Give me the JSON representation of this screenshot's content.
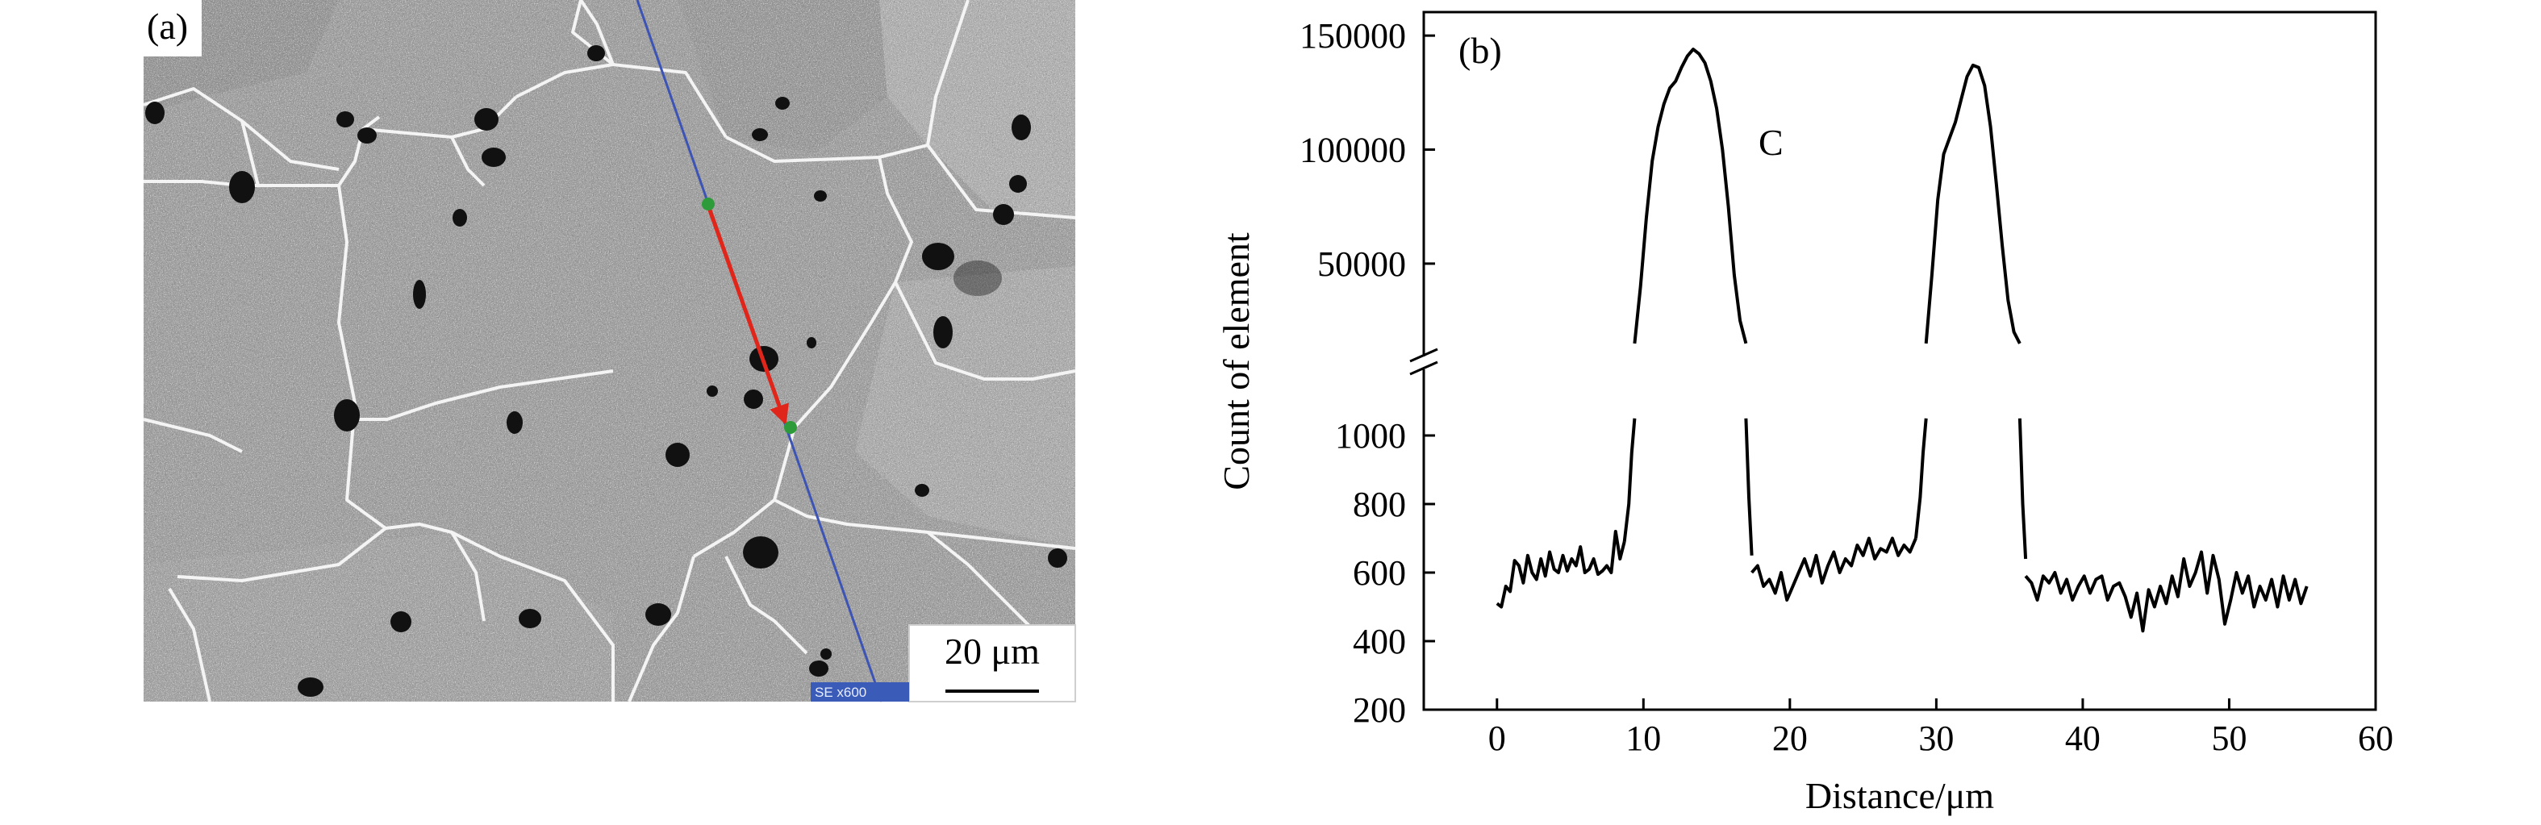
{
  "panel_a": {
    "label": "(a)",
    "scale_bar_label": "20 μm",
    "sem_footer": "SE  x600"
  },
  "chart_data": {
    "type": "line",
    "panel_label": "(b)",
    "xlabel": "Distance/μm",
    "ylabel": "Count of element",
    "series_annotation": "C",
    "xlim": [
      -5,
      60
    ],
    "x_ticks": [
      0,
      10,
      20,
      30,
      40,
      50,
      60
    ],
    "y_axis_broken": true,
    "y_ticks_lower": [
      200,
      400,
      600,
      800,
      1000
    ],
    "y_ticks_upper": [
      50000,
      100000,
      150000
    ],
    "ylim_lower": [
      200,
      1200
    ],
    "ylim_upper": [
      10000,
      155000
    ],
    "grid": false,
    "series": [
      {
        "x": [
          0.0,
          0.3,
          0.6,
          0.9,
          1.2,
          1.5,
          1.8,
          2.1,
          2.4,
          2.7,
          3.0,
          3.3,
          3.6,
          3.9,
          4.2,
          4.5,
          4.8,
          5.1,
          5.4,
          5.7,
          6.0,
          6.3,
          6.6,
          6.9,
          7.2,
          7.5,
          7.8,
          8.1,
          8.4,
          8.7
        ],
        "y": [
          510,
          500,
          560,
          545,
          635,
          620,
          570,
          650,
          600,
          580,
          640,
          590,
          660,
          610,
          600,
          650,
          605,
          640,
          620,
          675,
          600,
          610,
          640,
          595,
          605,
          620,
          600,
          720,
          640,
          690
        ]
      },
      {
        "x": [
          8.7,
          9.0,
          9.2,
          9.4
        ],
        "y": [
          690,
          800,
          950,
          1050
        ]
      },
      {
        "x": [
          9.4,
          9.8,
          10.2,
          10.6,
          11.0,
          11.4,
          11.8,
          12.2,
          12.6,
          13.0,
          13.4,
          13.8,
          14.2,
          14.6,
          15.0,
          15.4,
          15.8,
          16.2,
          16.6,
          17.0
        ],
        "y": [
          15000,
          40000,
          70000,
          95000,
          110000,
          120000,
          127000,
          130000,
          136000,
          141000,
          144000,
          142000,
          138000,
          130000,
          118000,
          100000,
          75000,
          45000,
          25000,
          15000
        ]
      },
      {
        "x": [
          17.0,
          17.2,
          17.4
        ],
        "y": [
          1050,
          820,
          650
        ]
      },
      {
        "x": [
          17.4,
          17.8,
          18.2,
          18.6,
          19.0,
          19.4,
          19.8,
          20.2,
          20.6,
          21.0,
          21.4,
          21.8,
          22.2,
          22.6,
          23.0,
          23.4,
          23.8,
          24.2,
          24.6,
          25.0,
          25.4,
          25.8,
          26.2,
          26.6,
          27.0,
          27.4,
          27.8,
          28.2,
          28.6
        ],
        "y": [
          600,
          620,
          560,
          580,
          540,
          600,
          520,
          560,
          600,
          640,
          590,
          650,
          570,
          620,
          660,
          600,
          640,
          620,
          680,
          650,
          700,
          640,
          670,
          660,
          700,
          650,
          680,
          660,
          700
        ]
      },
      {
        "x": [
          28.6,
          28.9,
          29.1,
          29.3
        ],
        "y": [
          700,
          820,
          950,
          1050
        ]
      },
      {
        "x": [
          29.3,
          29.7,
          30.1,
          30.5,
          30.9,
          31.3,
          31.7,
          32.1,
          32.5,
          32.9,
          33.3,
          33.7,
          34.1,
          34.5,
          34.9,
          35.3,
          35.7
        ],
        "y": [
          15000,
          45000,
          78000,
          98000,
          105000,
          112000,
          122000,
          132000,
          137000,
          136000,
          128000,
          110000,
          85000,
          58000,
          34000,
          20000,
          15000
        ]
      },
      {
        "x": [
          35.7,
          35.9,
          36.1
        ],
        "y": [
          1050,
          800,
          640
        ]
      },
      {
        "x": [
          36.1,
          36.5,
          36.9,
          37.3,
          37.7,
          38.1,
          38.5,
          38.9,
          39.3,
          39.7,
          40.1,
          40.5,
          40.9,
          41.3,
          41.7,
          42.1,
          42.5,
          42.9,
          43.3,
          43.7,
          44.1,
          44.5,
          44.9,
          45.3,
          45.7,
          46.1,
          46.5,
          46.9,
          47.3,
          47.7,
          48.1,
          48.5,
          48.9,
          49.3,
          49.7,
          50.1,
          50.5,
          50.9,
          51.3,
          51.7,
          52.1,
          52.5,
          52.9,
          53.3,
          53.7,
          54.1,
          54.5,
          54.9,
          55.3
        ],
        "y": [
          590,
          570,
          520,
          590,
          570,
          600,
          540,
          580,
          520,
          560,
          590,
          540,
          580,
          590,
          520,
          560,
          570,
          530,
          470,
          540,
          430,
          550,
          500,
          560,
          510,
          590,
          530,
          640,
          560,
          600,
          660,
          540,
          650,
          580,
          450,
          520,
          600,
          540,
          590,
          500,
          560,
          520,
          580,
          500,
          590,
          520,
          580,
          510,
          560
        ]
      }
    ]
  }
}
